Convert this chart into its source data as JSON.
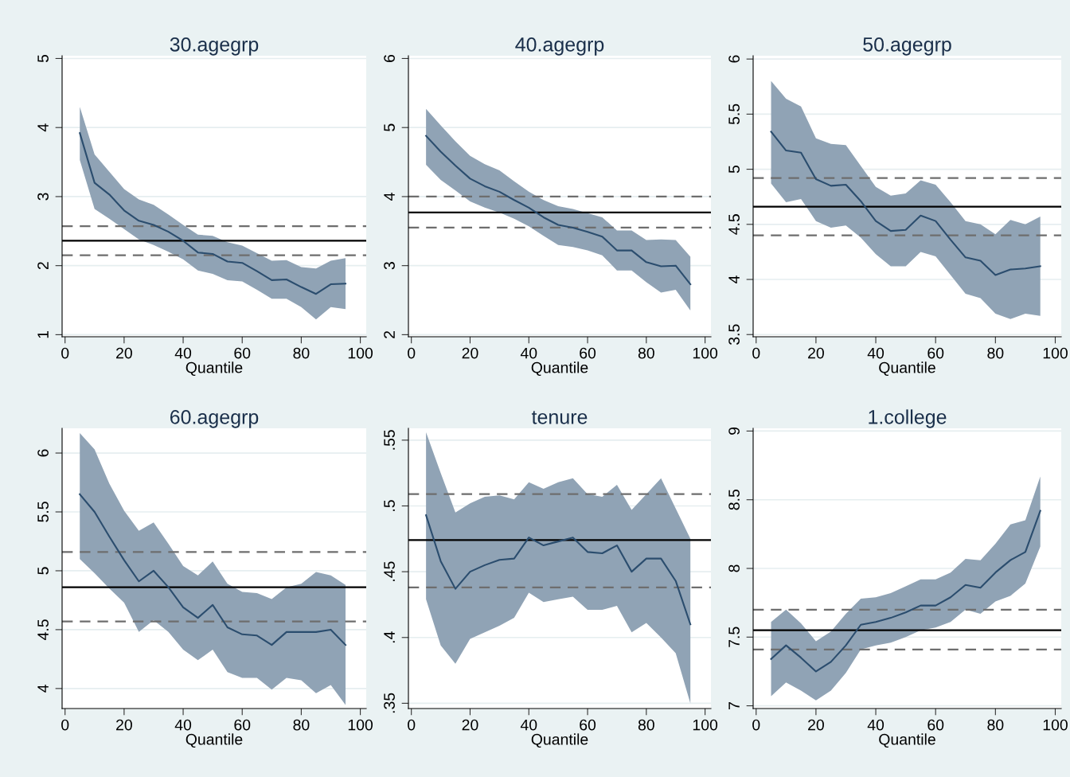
{
  "chart_data": [
    {
      "type": "line",
      "title": "30.agegrp",
      "xlabel": "Quantile",
      "x": [
        5,
        10,
        15,
        20,
        25,
        30,
        35,
        40,
        45,
        50,
        55,
        60,
        65,
        70,
        75,
        80,
        85,
        90,
        95
      ],
      "series": [
        {
          "color": "#2b4d6e",
          "values": [
            3.92,
            3.2,
            3.03,
            2.8,
            2.65,
            2.59,
            2.49,
            2.36,
            2.19,
            2.17,
            2.06,
            2.04,
            1.92,
            1.79,
            1.8,
            1.69,
            1.59,
            1.73,
            1.74
          ],
          "upper": [
            4.3,
            3.61,
            3.36,
            3.11,
            2.96,
            2.88,
            2.74,
            2.59,
            2.45,
            2.43,
            2.34,
            2.29,
            2.18,
            2.07,
            2.08,
            1.98,
            1.96,
            2.07,
            2.11
          ],
          "lower": [
            3.53,
            2.82,
            2.68,
            2.53,
            2.38,
            2.3,
            2.2,
            2.09,
            1.93,
            1.88,
            1.79,
            1.77,
            1.65,
            1.52,
            1.52,
            1.4,
            1.22,
            1.4,
            1.37
          ]
        }
      ],
      "ref_lines": [
        {
          "axis": "y",
          "value": 2.36,
          "color": "#000000",
          "line_style": "solid"
        },
        {
          "axis": "y",
          "value": 2.57,
          "color": "#6e6e6e",
          "line_style": "dashed"
        },
        {
          "axis": "y",
          "value": 2.15,
          "color": "#6e6e6e",
          "line_style": "dashed"
        }
      ],
      "xlim": [
        -1,
        102
      ],
      "xticks": [
        0,
        20,
        40,
        60,
        80,
        100
      ],
      "ylim": [
        0.97,
        5.04
      ],
      "yticks": [
        1,
        2,
        3,
        4,
        5
      ],
      "grid": "y"
    },
    {
      "type": "line",
      "title": "40.agegrp",
      "xlabel": "Quantile",
      "x": [
        5,
        10,
        15,
        20,
        25,
        30,
        35,
        40,
        45,
        50,
        55,
        60,
        65,
        70,
        75,
        80,
        85,
        90,
        95
      ],
      "series": [
        {
          "color": "#2b4d6e",
          "values": [
            4.88,
            4.65,
            4.45,
            4.26,
            4.15,
            4.07,
            3.95,
            3.84,
            3.7,
            3.59,
            3.55,
            3.49,
            3.42,
            3.22,
            3.22,
            3.05,
            2.99,
            3.0,
            2.73
          ],
          "upper": [
            5.27,
            5.03,
            4.8,
            4.59,
            4.47,
            4.38,
            4.22,
            4.07,
            3.95,
            3.86,
            3.82,
            3.76,
            3.7,
            3.51,
            3.51,
            3.37,
            3.38,
            3.37,
            3.13
          ],
          "lower": [
            4.46,
            4.24,
            4.09,
            3.93,
            3.84,
            3.77,
            3.68,
            3.57,
            3.43,
            3.3,
            3.27,
            3.22,
            3.15,
            2.93,
            2.93,
            2.76,
            2.61,
            2.65,
            2.35
          ]
        }
      ],
      "ref_lines": [
        {
          "axis": "y",
          "value": 3.77,
          "color": "#000000",
          "line_style": "solid"
        },
        {
          "axis": "y",
          "value": 4.0,
          "color": "#6e6e6e",
          "line_style": "dashed"
        },
        {
          "axis": "y",
          "value": 3.55,
          "color": "#6e6e6e",
          "line_style": "dashed"
        }
      ],
      "xlim": [
        -1,
        102
      ],
      "xticks": [
        0,
        20,
        40,
        60,
        80,
        100
      ],
      "ylim": [
        1.97,
        6.04
      ],
      "yticks": [
        2,
        3,
        4,
        5,
        6
      ],
      "grid": "y"
    },
    {
      "type": "line",
      "title": "50.agegrp",
      "xlabel": "Quantile",
      "x": [
        5,
        10,
        15,
        20,
        25,
        30,
        35,
        40,
        45,
        50,
        55,
        60,
        65,
        70,
        75,
        80,
        85,
        90,
        95
      ],
      "series": [
        {
          "color": "#2b4d6e",
          "values": [
            5.34,
            5.17,
            5.15,
            4.91,
            4.85,
            4.86,
            4.71,
            4.53,
            4.44,
            4.45,
            4.58,
            4.53,
            4.36,
            4.2,
            4.17,
            4.04,
            4.09,
            4.1,
            4.12
          ],
          "upper": [
            5.8,
            5.64,
            5.57,
            5.28,
            5.23,
            5.22,
            5.03,
            4.84,
            4.76,
            4.78,
            4.9,
            4.86,
            4.7,
            4.53,
            4.5,
            4.41,
            4.54,
            4.5,
            4.57
          ],
          "lower": [
            4.87,
            4.7,
            4.73,
            4.53,
            4.47,
            4.49,
            4.38,
            4.23,
            4.12,
            4.12,
            4.25,
            4.21,
            4.04,
            3.87,
            3.83,
            3.69,
            3.64,
            3.69,
            3.67
          ]
        }
      ],
      "ref_lines": [
        {
          "axis": "y",
          "value": 4.66,
          "color": "#000000",
          "line_style": "solid"
        },
        {
          "axis": "y",
          "value": 4.92,
          "color": "#6e6e6e",
          "line_style": "dashed"
        },
        {
          "axis": "y",
          "value": 4.4,
          "color": "#6e6e6e",
          "line_style": "dashed"
        }
      ],
      "xlim": [
        -1,
        102
      ],
      "xticks": [
        0,
        20,
        40,
        60,
        80,
        100
      ],
      "ylim": [
        3.48,
        6.03
      ],
      "yticks": [
        3.5,
        4,
        4.5,
        5,
        5.5,
        6
      ],
      "grid": "y"
    },
    {
      "type": "line",
      "title": "60.agegrp",
      "xlabel": "Quantile",
      "x": [
        5,
        10,
        15,
        20,
        25,
        30,
        35,
        40,
        45,
        50,
        55,
        60,
        65,
        70,
        75,
        80,
        85,
        90,
        95
      ],
      "series": [
        {
          "color": "#2b4d6e",
          "values": [
            5.65,
            5.5,
            5.29,
            5.09,
            4.91,
            5.0,
            4.86,
            4.69,
            4.6,
            4.71,
            4.52,
            4.46,
            4.45,
            4.37,
            4.48,
            4.48,
            4.48,
            4.5,
            4.37
          ],
          "upper": [
            6.17,
            6.03,
            5.74,
            5.51,
            5.34,
            5.41,
            5.23,
            5.04,
            4.96,
            5.08,
            4.89,
            4.82,
            4.81,
            4.76,
            4.86,
            4.89,
            4.99,
            4.96,
            4.88
          ],
          "lower": [
            5.1,
            4.98,
            4.85,
            4.73,
            4.48,
            4.58,
            4.48,
            4.33,
            4.24,
            4.33,
            4.14,
            4.09,
            4.09,
            3.99,
            4.09,
            4.07,
            3.96,
            4.03,
            3.86
          ]
        }
      ],
      "ref_lines": [
        {
          "axis": "y",
          "value": 4.86,
          "color": "#000000",
          "line_style": "solid"
        },
        {
          "axis": "y",
          "value": 5.16,
          "color": "#6e6e6e",
          "line_style": "dashed"
        },
        {
          "axis": "y",
          "value": 4.57,
          "color": "#6e6e6e",
          "line_style": "dashed"
        }
      ],
      "xlim": [
        -1,
        102
      ],
      "xticks": [
        0,
        20,
        40,
        60,
        80,
        100
      ],
      "ylim": [
        3.83,
        6.21
      ],
      "yticks": [
        4,
        4.5,
        5,
        5.5,
        6
      ],
      "grid": "y"
    },
    {
      "type": "line",
      "title": "tenure",
      "xlabel": "Quantile",
      "x": [
        5,
        10,
        15,
        20,
        25,
        30,
        35,
        40,
        45,
        50,
        55,
        60,
        65,
        70,
        75,
        80,
        85,
        90,
        95
      ],
      "series": [
        {
          "color": "#2b4d6e",
          "values": [
            0.493,
            0.458,
            0.437,
            0.45,
            0.455,
            0.459,
            0.46,
            0.476,
            0.47,
            0.473,
            0.476,
            0.465,
            0.464,
            0.47,
            0.45,
            0.46,
            0.46,
            0.443,
            0.41
          ],
          "upper": [
            0.556,
            0.525,
            0.495,
            0.502,
            0.507,
            0.508,
            0.505,
            0.518,
            0.513,
            0.518,
            0.521,
            0.509,
            0.507,
            0.516,
            0.497,
            0.509,
            0.521,
            0.498,
            0.475
          ],
          "lower": [
            0.429,
            0.394,
            0.38,
            0.399,
            0.404,
            0.409,
            0.415,
            0.434,
            0.427,
            0.429,
            0.431,
            0.421,
            0.421,
            0.424,
            0.404,
            0.411,
            0.4,
            0.388,
            0.35
          ]
        }
      ],
      "ref_lines": [
        {
          "axis": "y",
          "value": 0.474,
          "color": "#000000",
          "line_style": "solid"
        },
        {
          "axis": "y",
          "value": 0.509,
          "color": "#6e6e6e",
          "line_style": "dashed"
        },
        {
          "axis": "y",
          "value": 0.438,
          "color": "#6e6e6e",
          "line_style": "dashed"
        }
      ],
      "xlim": [
        -1,
        102
      ],
      "xticks": [
        0,
        20,
        40,
        60,
        80,
        100
      ],
      "ylim": [
        0.346,
        0.559
      ],
      "yticks": [
        {
          "value": 0.35,
          "label": ".35"
        },
        {
          "value": 0.4,
          "label": ".4"
        },
        {
          "value": 0.45,
          "label": ".45"
        },
        {
          "value": 0.5,
          "label": ".5"
        },
        {
          "value": 0.55,
          "label": ".55"
        }
      ],
      "grid": "y"
    },
    {
      "type": "line",
      "title": "1.college",
      "xlabel": "Quantile",
      "x": [
        5,
        10,
        15,
        20,
        25,
        30,
        35,
        40,
        45,
        50,
        55,
        60,
        65,
        70,
        75,
        80,
        85,
        90,
        95
      ],
      "series": [
        {
          "color": "#2b4d6e",
          "values": [
            7.34,
            7.44,
            7.35,
            7.25,
            7.32,
            7.44,
            7.59,
            7.61,
            7.64,
            7.68,
            7.73,
            7.73,
            7.79,
            7.88,
            7.86,
            7.97,
            8.06,
            8.12,
            8.42
          ],
          "upper": [
            7.61,
            7.7,
            7.6,
            7.47,
            7.54,
            7.67,
            7.78,
            7.79,
            7.82,
            7.87,
            7.92,
            7.92,
            7.97,
            8.07,
            8.06,
            8.18,
            8.32,
            8.35,
            8.67
          ],
          "lower": [
            7.07,
            7.17,
            7.11,
            7.04,
            7.11,
            7.24,
            7.41,
            7.44,
            7.46,
            7.5,
            7.55,
            7.57,
            7.61,
            7.7,
            7.67,
            7.76,
            7.8,
            7.89,
            8.16
          ]
        }
      ],
      "ref_lines": [
        {
          "axis": "y",
          "value": 7.55,
          "color": "#000000",
          "line_style": "solid"
        },
        {
          "axis": "y",
          "value": 7.7,
          "color": "#6e6e6e",
          "line_style": "dashed"
        },
        {
          "axis": "y",
          "value": 7.41,
          "color": "#6e6e6e",
          "line_style": "dashed"
        }
      ],
      "xlim": [
        -1,
        102
      ],
      "xticks": [
        0,
        20,
        40,
        60,
        80,
        100
      ],
      "ylim": [
        6.98,
        9.02
      ],
      "yticks": [
        7,
        7.5,
        8,
        8.5,
        9
      ],
      "grid": "y"
    }
  ]
}
